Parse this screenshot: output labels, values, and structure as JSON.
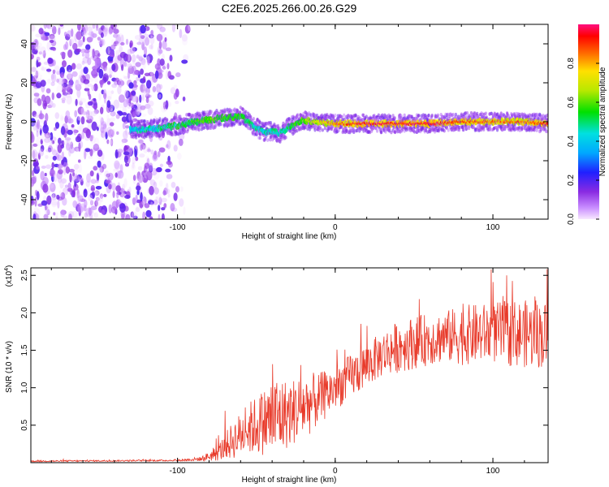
{
  "figure": {
    "title": "C2E6.2025.266.00.26.G29"
  },
  "chart_data": [
    {
      "type": "heatmap",
      "title": "C2E6.2025.266.00.26.G29",
      "xlabel": "Height of straight line (km)",
      "ylabel": "Frequency (Hz)",
      "xlim": [
        -193,
        135
      ],
      "ylim": [
        -50,
        50
      ],
      "xticks": [
        -100,
        0,
        100
      ],
      "xtick_labels": [
        "-100",
        "0",
        "100"
      ],
      "yticks": [
        -40,
        -20,
        0,
        20,
        40
      ],
      "ytick_labels": [
        "-40",
        "-20",
        "0",
        "20",
        "40"
      ],
      "grid": false,
      "colorbar": {
        "label": "Normalized spectral amplitude",
        "range": [
          0,
          1
        ],
        "ticks": [
          0.0,
          0.2,
          0.4,
          0.6,
          0.8
        ],
        "tick_labels": [
          "0.0",
          "0.2",
          "0.4",
          "0.6",
          "0.8"
        ]
      },
      "ridge": {
        "description_points_x": [
          -130,
          -120,
          -110,
          -100,
          -90,
          -80,
          -70,
          -60,
          -55,
          -50,
          -45,
          -40,
          -35,
          -30,
          -25,
          -20,
          -15,
          -10,
          0,
          20,
          40,
          60,
          80,
          100,
          120,
          135
        ],
        "center_freq": [
          -4,
          -4,
          -3,
          -2,
          0,
          1,
          2,
          3,
          0,
          -3,
          -5,
          -5,
          -6,
          -3,
          -1,
          1,
          0,
          0,
          -1,
          -1,
          -1,
          -1,
          0,
          0,
          0,
          -1
        ],
        "amplitude": [
          0.35,
          0.4,
          0.45,
          0.5,
          0.55,
          0.6,
          0.55,
          0.55,
          0.5,
          0.45,
          0.4,
          0.45,
          0.4,
          0.5,
          0.55,
          0.6,
          0.7,
          0.75,
          0.85,
          0.95,
          0.95,
          0.95,
          0.9,
          0.85,
          0.85,
          0.9
        ]
      },
      "noise_region_x": [
        -193,
        -93
      ]
    },
    {
      "type": "line",
      "title": "",
      "xlabel": "Height of straight line (km)",
      "ylabel": "SNR (10 * v/v)",
      "yscale_label": "(x10",
      "yscale_exponent": "4",
      "yscale_suffix": ")",
      "xlim": [
        -193,
        135
      ],
      "ylim": [
        0,
        2.6
      ],
      "xticks": [
        -100,
        0,
        100
      ],
      "xtick_labels": [
        "-100",
        "0",
        "100"
      ],
      "yticks": [
        0.5,
        1.0,
        1.5,
        2.0,
        2.5
      ],
      "ytick_labels": [
        "0.5",
        "1.0",
        "1.5",
        "2.0",
        "2.5"
      ],
      "grid": false,
      "series": [
        {
          "name": "SNR",
          "color": "#e83a2a",
          "envelope_x": [
            -193,
            -100,
            -85,
            -75,
            -65,
            -55,
            -45,
            -38,
            -30,
            -20,
            -10,
            0,
            10,
            20,
            30,
            40,
            50,
            60,
            70,
            80,
            90,
            100,
            110,
            120,
            135
          ],
          "envelope_mean": [
            0.02,
            0.03,
            0.05,
            0.12,
            0.3,
            0.45,
            0.55,
            0.6,
            0.65,
            0.75,
            0.85,
            1.0,
            1.15,
            1.3,
            1.45,
            1.55,
            1.6,
            1.65,
            1.68,
            1.7,
            1.72,
            1.73,
            1.73,
            1.72,
            1.7
          ],
          "envelope_spread": [
            0.01,
            0.01,
            0.03,
            0.1,
            0.25,
            0.35,
            0.45,
            0.6,
            0.45,
            0.45,
            0.35,
            0.3,
            0.3,
            0.3,
            0.3,
            0.35,
            0.35,
            0.35,
            0.35,
            0.4,
            0.4,
            0.4,
            0.45,
            0.45,
            0.45
          ]
        }
      ]
    }
  ],
  "colors": {
    "line": "#e83a2a",
    "axis": "#000000",
    "background": "#ffffff"
  }
}
